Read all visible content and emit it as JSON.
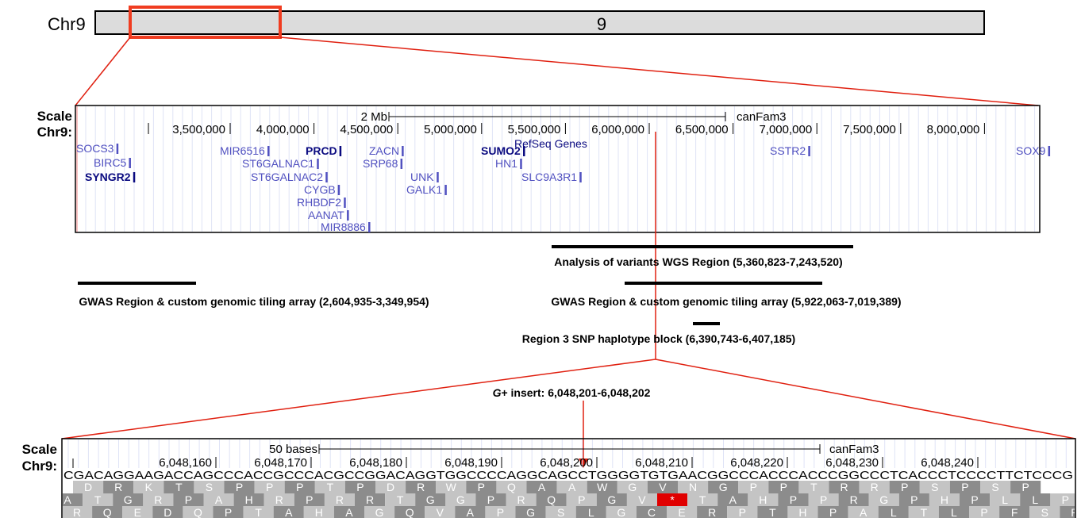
{
  "ideogram": {
    "chrom_label": "Chr9",
    "band_label": "9"
  },
  "overview": {
    "scale_label": "Scale",
    "chrom_label": "Chr9:",
    "scale_bar": "2 Mb",
    "assembly": "canFam3",
    "positions": [
      "3,500,000",
      "4,000,000",
      "4,500,000",
      "5,000,000",
      "5,500,000",
      "6,000,000",
      "6,500,000",
      "7,000,000",
      "7,500,000",
      "8,000,000"
    ],
    "track_label": "RefSeq Genes",
    "genes": [
      "SOCS3",
      "BIRC5",
      "SYNGR2",
      "MIR6516",
      "PRCD",
      "ZACN",
      "SUMO2",
      "ST6GALNAC1",
      "SRP68",
      "HN1",
      "ST6GALNAC2",
      "UNK",
      "SLC9A3R1",
      "CYGB",
      "GALK1",
      "RHBDF2",
      "AANAT",
      "MIR8886",
      "SSTR2",
      "SOX9"
    ]
  },
  "regions": [
    "Analysis of variants WGS Region (5,360,823-7,243,520)",
    "GWAS Region & custom genomic tiling array (2,604,935-3,349,954)",
    "GWAS Region & custom genomic tiling array (5,922,063-7,019,389)",
    "Region 3 SNP haplotype block (6,390,743-6,407,185)"
  ],
  "insert_label": {
    "italic": "G",
    "rest": "+ insert: 6,048,201-6,048,202"
  },
  "detail": {
    "scale_label": "Scale",
    "chrom_label": "Chr9:",
    "scale_bar": "50 bases",
    "assembly": "canFam3",
    "positions": [
      "6,048,160",
      "6,048,170",
      "6,048,180",
      "6,048,190",
      "6,048,200",
      "6,048,210",
      "6,048,220",
      "6,048,230",
      "6,048,240"
    ],
    "sequence": "CGACAGGAAGACCAGCCCACCGCCCACGCCGGACAGGTGGCCCCAGGCAGCCTGGGGTGTGAACGGCCCACCCACCCGGCCCTCACCCTCCCCTTCTCCCG",
    "frames": [
      [
        "D",
        "R",
        "K",
        "T",
        "S",
        "P",
        "P",
        "P",
        "T",
        "P",
        "D",
        "R",
        "W",
        "P",
        "Q",
        "A",
        "A",
        "W",
        "G",
        "V",
        "N",
        "G",
        "P",
        "P",
        "T",
        "R",
        "R",
        "P",
        "S",
        "P",
        "S",
        "P"
      ],
      [
        "A",
        "T",
        "G",
        "R",
        "P",
        "A",
        "H",
        "R",
        "P",
        "R",
        "R",
        "T",
        "G",
        "G",
        "P",
        "R",
        "Q",
        "P",
        "G",
        "V",
        "*",
        "T",
        "A",
        "H",
        "P",
        "P",
        "R",
        "G",
        "P",
        "H",
        "P",
        "L",
        "L",
        "P"
      ],
      [
        "R",
        "Q",
        "E",
        "D",
        "Q",
        "P",
        "T",
        "A",
        "H",
        "A",
        "G",
        "Q",
        "V",
        "A",
        "P",
        "G",
        "S",
        "L",
        "G",
        "C",
        "E",
        "R",
        "P",
        "T",
        "H",
        "P",
        "A",
        "L",
        "T",
        "L",
        "P",
        "F",
        "S",
        "R"
      ]
    ]
  }
}
